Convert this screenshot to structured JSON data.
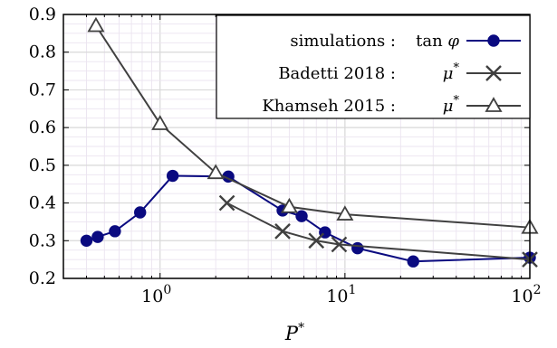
{
  "chart_data": {
    "type": "line",
    "xscale": "log",
    "xlim": [
      0.3,
      100
    ],
    "ylim": [
      0.2,
      0.9
    ],
    "xlabel": "P*",
    "ylabel": "",
    "grid": true,
    "legend_position": "top-right",
    "x_ticks": [
      {
        "value": 1,
        "base": "10",
        "exp": "0"
      },
      {
        "value": 10,
        "base": "10",
        "exp": "1"
      },
      {
        "value": 100,
        "base": "10",
        "exp": "2"
      }
    ],
    "y_ticks": [
      "0.2",
      "0.3",
      "0.4",
      "0.5",
      "0.6",
      "0.7",
      "0.8",
      "0.9"
    ],
    "series": [
      {
        "name": "simulations :",
        "symbol": "tan φ",
        "color": "#0a0a80",
        "marker": "circle",
        "x": [
          0.4,
          0.46,
          0.57,
          0.78,
          1.17,
          2.34,
          4.6,
          5.83,
          7.8,
          11.7,
          23.4,
          100
        ],
        "y": [
          0.3,
          0.31,
          0.325,
          0.375,
          0.472,
          0.47,
          0.38,
          0.365,
          0.322,
          0.28,
          0.245,
          0.255
        ]
      },
      {
        "name": "Badetti 2018 :",
        "symbol": "μ*",
        "color": "#404040",
        "marker": "cross",
        "x": [
          2.3,
          4.6,
          7.0,
          9.3,
          100
        ],
        "y": [
          0.4,
          0.325,
          0.3,
          0.29,
          0.25
        ]
      },
      {
        "name": "Khamseh 2015 :",
        "symbol": "μ*",
        "color": "#404040",
        "marker": "triangle",
        "x": [
          0.45,
          1.0,
          2.0,
          5.0,
          10.0,
          100
        ],
        "y": [
          0.87,
          0.61,
          0.48,
          0.39,
          0.37,
          0.335
        ]
      }
    ]
  }
}
